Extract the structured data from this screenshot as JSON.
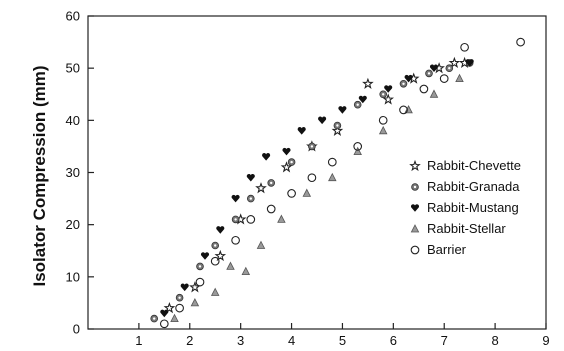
{
  "chart_data": {
    "type": "scatter",
    "title": "",
    "xlabel": "",
    "ylabel": "Isolator Compression (mm)",
    "xlim": [
      0,
      9
    ],
    "ylim": [
      0,
      60
    ],
    "xticks": [
      "1",
      "2",
      "3",
      "4",
      "5",
      "6",
      "7",
      "8",
      "9"
    ],
    "yticks": [
      "0",
      "10",
      "20",
      "30",
      "40",
      "50",
      "60"
    ],
    "grid": false,
    "legend_position": "right",
    "series": [
      {
        "name": "Rabbit-Chevette",
        "marker": "star-open",
        "points": [
          [
            1.6,
            4
          ],
          [
            2.1,
            8
          ],
          [
            2.6,
            14
          ],
          [
            3.0,
            21
          ],
          [
            3.4,
            27
          ],
          [
            3.9,
            31
          ],
          [
            4.4,
            35
          ],
          [
            4.9,
            38
          ],
          [
            5.5,
            47
          ],
          [
            5.9,
            44
          ],
          [
            6.4,
            48
          ],
          [
            6.9,
            50
          ],
          [
            7.2,
            51
          ],
          [
            7.4,
            51
          ]
        ]
      },
      {
        "name": "Rabbit-Granada",
        "marker": "gear",
        "points": [
          [
            1.3,
            2
          ],
          [
            1.8,
            6
          ],
          [
            2.2,
            12
          ],
          [
            2.5,
            16
          ],
          [
            2.9,
            21
          ],
          [
            3.2,
            25
          ],
          [
            3.6,
            28
          ],
          [
            4.0,
            32
          ],
          [
            4.4,
            35
          ],
          [
            4.9,
            39
          ],
          [
            5.3,
            43
          ],
          [
            5.8,
            45
          ],
          [
            6.2,
            47
          ],
          [
            6.7,
            49
          ],
          [
            7.1,
            50
          ],
          [
            7.5,
            51
          ]
        ]
      },
      {
        "name": "Rabbit-Mustang",
        "marker": "heart-filled",
        "points": [
          [
            1.5,
            3
          ],
          [
            1.9,
            8
          ],
          [
            2.3,
            14
          ],
          [
            2.6,
            19
          ],
          [
            2.9,
            25
          ],
          [
            3.2,
            29
          ],
          [
            3.5,
            33
          ],
          [
            3.9,
            34
          ],
          [
            4.2,
            38
          ],
          [
            4.6,
            40
          ],
          [
            5.0,
            42
          ],
          [
            5.4,
            44
          ],
          [
            5.9,
            46
          ],
          [
            6.3,
            48
          ],
          [
            6.8,
            50
          ],
          [
            7.5,
            51
          ]
        ]
      },
      {
        "name": "Rabbit-Stellar",
        "marker": "triangle",
        "points": [
          [
            1.7,
            2
          ],
          [
            2.1,
            5
          ],
          [
            2.5,
            7
          ],
          [
            2.8,
            12
          ],
          [
            3.1,
            11
          ],
          [
            3.4,
            16
          ],
          [
            3.8,
            21
          ],
          [
            4.3,
            26
          ],
          [
            4.8,
            29
          ],
          [
            5.3,
            34
          ],
          [
            5.8,
            38
          ],
          [
            6.3,
            42
          ],
          [
            6.8,
            45
          ],
          [
            7.3,
            48
          ]
        ]
      },
      {
        "name": "Barrier",
        "marker": "circle-open",
        "points": [
          [
            1.5,
            1
          ],
          [
            1.8,
            4
          ],
          [
            2.2,
            9
          ],
          [
            2.5,
            13
          ],
          [
            2.9,
            17
          ],
          [
            3.2,
            21
          ],
          [
            3.6,
            23
          ],
          [
            4.0,
            26
          ],
          [
            4.4,
            29
          ],
          [
            4.8,
            32
          ],
          [
            5.3,
            35
          ],
          [
            5.8,
            40
          ],
          [
            6.2,
            42
          ],
          [
            6.6,
            46
          ],
          [
            7.0,
            48
          ],
          [
            7.4,
            54
          ],
          [
            8.5,
            55
          ]
        ]
      }
    ]
  }
}
